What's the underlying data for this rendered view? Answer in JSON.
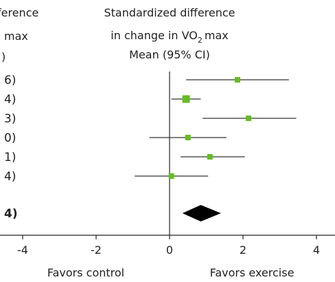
{
  "chart_data": {
    "type": "forest",
    "title_lines": [
      "Standardized difference",
      "in change in VO",
      "max",
      "Mean (95% CI)"
    ],
    "title_subscript": "2",
    "left_header_fragments": [
      "ference",
      "max",
      ")"
    ],
    "xlim": [
      -4.5,
      4.5
    ],
    "xticks": [
      -4,
      -2,
      0,
      2,
      4
    ],
    "xtick_labels": [
      "-4",
      "-2",
      "0",
      "2",
      "4"
    ],
    "xlabel_left": "Favors control",
    "xlabel_right": "Favors exercise",
    "marker_color": "#66bb22",
    "summary_color": "#000000",
    "studies": [
      {
        "label": "6)",
        "mean": 1.85,
        "lo": 0.45,
        "hi": 3.25
      },
      {
        "label": "4)",
        "mean": 0.45,
        "lo": 0.05,
        "hi": 0.85
      },
      {
        "label": "3)",
        "mean": 2.15,
        "lo": 0.9,
        "hi": 3.45
      },
      {
        "label": "0)",
        "mean": 0.5,
        "lo": -0.55,
        "hi": 1.55
      },
      {
        "label": "1)",
        "mean": 1.1,
        "lo": 0.3,
        "hi": 2.05
      },
      {
        "label": "4)",
        "mean": 0.05,
        "lo": -0.95,
        "hi": 1.05
      }
    ],
    "summary": {
      "label": "4)",
      "mean": 0.85,
      "lo": 0.35,
      "hi": 1.4
    }
  }
}
